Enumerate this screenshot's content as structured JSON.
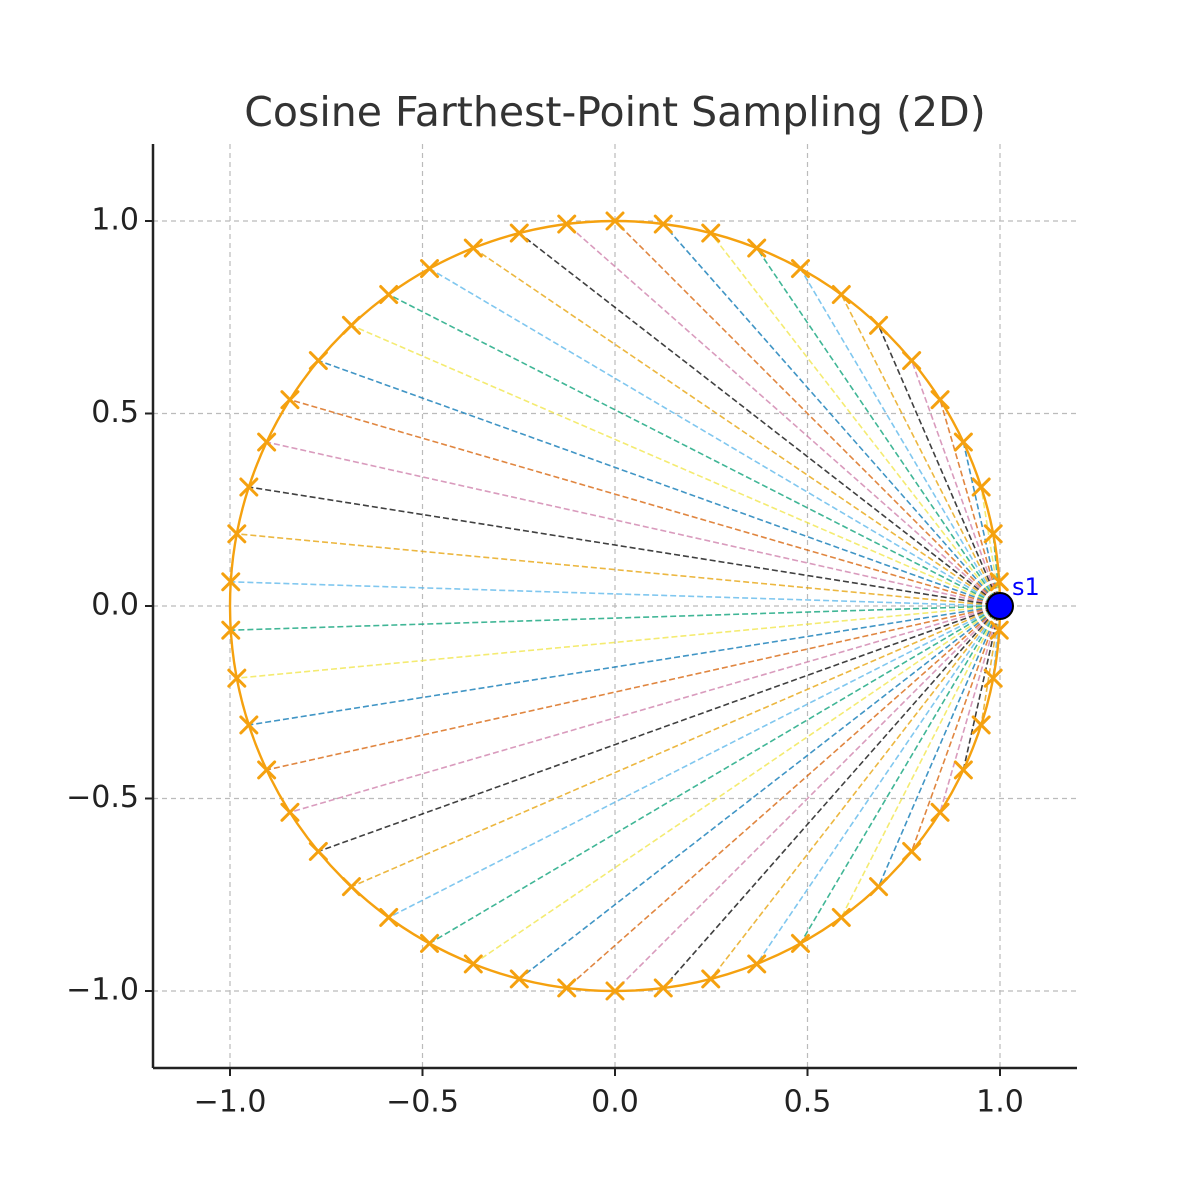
{
  "chart_data": {
    "type": "scatter",
    "title": "Cosine Farthest-Point Sampling (2D)",
    "xlabel": "",
    "ylabel": "",
    "xlim": [
      -1.2,
      1.2
    ],
    "ylim": [
      -1.2,
      1.2
    ],
    "x_ticks": [
      -1.0,
      -0.5,
      0.0,
      0.5,
      1.0
    ],
    "y_ticks": [
      -1.0,
      -0.5,
      0.0,
      0.5,
      1.0
    ],
    "x_tick_labels": [
      "−1.0",
      "−0.5",
      "0.0",
      "0.5",
      "1.0"
    ],
    "y_tick_labels": [
      "−1.0",
      "−0.5",
      "0.0",
      "0.5",
      "1.0"
    ],
    "grid": true,
    "unit_circle": {
      "center": [
        0,
        0
      ],
      "radius": 1.0,
      "color": "#f5a10f"
    },
    "sample_points": {
      "count": 50,
      "angle_step_deg": 7.2,
      "start_angle_deg": 3.6,
      "marker": "x",
      "color": "#f5a10f"
    },
    "selected_point": {
      "label": "s1",
      "x": 1.0,
      "y": 0.0,
      "color": "#0000ff",
      "label_color": "#0000ff"
    },
    "line_colors": [
      "#56b4e9",
      "#009e73",
      "#f0e442",
      "#0072b2",
      "#d55e00",
      "#cc79a7",
      "#000000",
      "#e69f00"
    ]
  }
}
